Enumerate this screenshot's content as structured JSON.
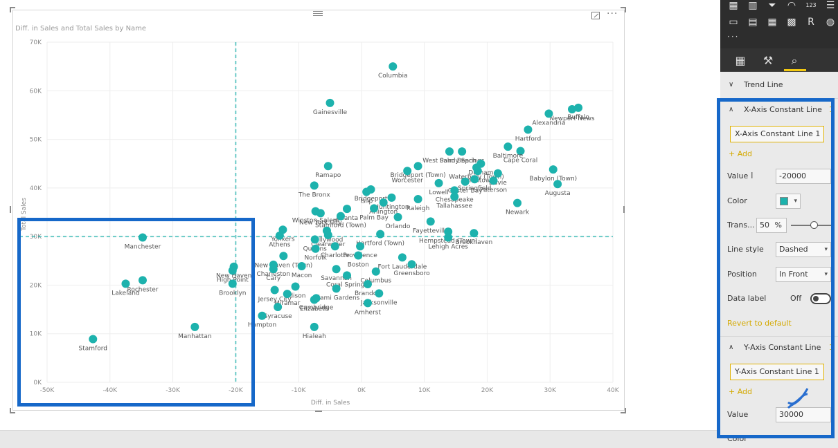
{
  "visual": {
    "title": "Diff. in Sales and Total Sales by Name",
    "more_glyph": "···"
  },
  "chart_data": {
    "type": "scatter",
    "title": "Diff. in Sales and Total Sales by Name",
    "xlabel": "Diff. in Sales",
    "ylabel": "Total Sales",
    "xlim": [
      -50000,
      40000
    ],
    "ylim": [
      0,
      70000
    ],
    "x_ticks": [
      "-50K",
      "-40K",
      "-30K",
      "-20K",
      "-10K",
      "0K",
      "10K",
      "20K",
      "30K",
      "40K"
    ],
    "y_ticks": [
      "0K",
      "10K",
      "20K",
      "30K",
      "40K",
      "50K",
      "60K",
      "70K"
    ],
    "x_constant_line": -20000,
    "y_constant_line": 30000,
    "point_color": "#1db2ad",
    "points": [
      {
        "name": "Columbia",
        "x": 5000,
        "y": 65000
      },
      {
        "name": "Gainesville",
        "x": -5000,
        "y": 57500
      },
      {
        "name": "Buffalo",
        "x": 34500,
        "y": 56500
      },
      {
        "name": "Newport News",
        "x": 33500,
        "y": 56200
      },
      {
        "name": "Alexandria",
        "x": 29800,
        "y": 55300
      },
      {
        "name": "Hartford",
        "x": 26500,
        "y": 52000
      },
      {
        "name": "Sandy Springs",
        "x": 16000,
        "y": 47500
      },
      {
        "name": "Cape Coral",
        "x": 25300,
        "y": 47600
      },
      {
        "name": "West Palm Beach",
        "x": 14000,
        "y": 47500
      },
      {
        "name": "Baltimore",
        "x": 23300,
        "y": 48500
      },
      {
        "name": "Durham",
        "x": 19000,
        "y": 45000
      },
      {
        "name": "Bridgeport (Town)",
        "x": 9000,
        "y": 44500
      },
      {
        "name": "Waterbury (Town)",
        "x": 18300,
        "y": 44200
      },
      {
        "name": "Ramapo",
        "x": -5300,
        "y": 44500
      },
      {
        "name": "Worcester",
        "x": 7300,
        "y": 43500
      },
      {
        "name": "Smithtown",
        "x": 18500,
        "y": 43500
      },
      {
        "name": "Davie",
        "x": 21700,
        "y": 43000
      },
      {
        "name": "Paterson",
        "x": 21000,
        "y": 41500
      },
      {
        "name": "Babylon (Town)",
        "x": 30500,
        "y": 43800
      },
      {
        "name": "Lowell",
        "x": 12300,
        "y": 41000
      },
      {
        "name": "Oyster Bay",
        "x": 16500,
        "y": 41300
      },
      {
        "name": "Springfield",
        "x": 18000,
        "y": 41800
      },
      {
        "name": "Augusta",
        "x": 31200,
        "y": 40800
      },
      {
        "name": "The Bronx",
        "x": -7500,
        "y": 40500
      },
      {
        "name": "Bridgeport",
        "x": 1500,
        "y": 39700
      },
      {
        "name": "Islip",
        "x": 800,
        "y": 39200
      },
      {
        "name": "Chesapeake",
        "x": 14800,
        "y": 39500
      },
      {
        "name": "Huntington",
        "x": 4800,
        "y": 38000
      },
      {
        "name": "Tallahassee",
        "x": 14800,
        "y": 38200
      },
      {
        "name": "Raleigh",
        "x": 9000,
        "y": 37700
      },
      {
        "name": "Winston-Salem",
        "x": -7300,
        "y": 35200
      },
      {
        "name": "Atlanta",
        "x": -2300,
        "y": 35700
      },
      {
        "name": "Arlington",
        "x": 3500,
        "y": 37000
      },
      {
        "name": "Palm Bay",
        "x": 2000,
        "y": 35800
      },
      {
        "name": "Newark",
        "x": 24800,
        "y": 36900
      },
      {
        "name": "New York City",
        "x": -6500,
        "y": 34800
      },
      {
        "name": "Stamford (Town)",
        "x": -3300,
        "y": 34200
      },
      {
        "name": "Orlando",
        "x": 5800,
        "y": 34000
      },
      {
        "name": "Yonkers",
        "x": -12500,
        "y": 31400
      },
      {
        "name": "Fayetteville",
        "x": 11000,
        "y": 33100
      },
      {
        "name": "Hollywood",
        "x": -5500,
        "y": 31200
      },
      {
        "name": "Hempstead (Town)",
        "x": 13800,
        "y": 31000
      },
      {
        "name": "Brookhaven",
        "x": 17900,
        "y": 30700
      },
      {
        "name": "Athens",
        "x": -13000,
        "y": 30200
      },
      {
        "name": "Clearwater",
        "x": -5300,
        "y": 30300
      },
      {
        "name": "Hartford (Town)",
        "x": 3000,
        "y": 30500
      },
      {
        "name": "Lehigh Acres",
        "x": 13800,
        "y": 29800
      },
      {
        "name": "Queens",
        "x": -7400,
        "y": 29400
      },
      {
        "name": "Charlotte",
        "x": -4200,
        "y": 28000
      },
      {
        "name": "Providence",
        "x": -200,
        "y": 28000
      },
      {
        "name": "New Haven (Town)",
        "x": -12400,
        "y": 26000
      },
      {
        "name": "Norfolk",
        "x": -7300,
        "y": 27500
      },
      {
        "name": "Fort Lauderdale",
        "x": 6500,
        "y": 25700
      },
      {
        "name": "Charleston",
        "x": -14000,
        "y": 24200
      },
      {
        "name": "Boston",
        "x": -500,
        "y": 26100
      },
      {
        "name": "Macon",
        "x": -9500,
        "y": 23900
      },
      {
        "name": "Greensboro",
        "x": 8000,
        "y": 24300
      },
      {
        "name": "Cary",
        "x": -14000,
        "y": 23300
      },
      {
        "name": "Savannah",
        "x": -4000,
        "y": 23300
      },
      {
        "name": "Columbus",
        "x": 2300,
        "y": 22800
      },
      {
        "name": "Coral Springs",
        "x": -2300,
        "y": 22000
      },
      {
        "name": "Brandon",
        "x": 1000,
        "y": 20200
      },
      {
        "name": "Jersey City",
        "x": -13800,
        "y": 19000
      },
      {
        "name": "Edison",
        "x": -10500,
        "y": 19700
      },
      {
        "name": "Miami Gardens",
        "x": -4000,
        "y": 19300
      },
      {
        "name": "Jacksonville",
        "x": 2800,
        "y": 18300
      },
      {
        "name": "Miramar",
        "x": -11800,
        "y": 18200
      },
      {
        "name": "Cambridge",
        "x": -7200,
        "y": 17300
      },
      {
        "name": "Elizabeth",
        "x": -7500,
        "y": 17000
      },
      {
        "name": "Amherst",
        "x": 1000,
        "y": 16300
      },
      {
        "name": "Syracuse",
        "x": -13300,
        "y": 15500
      },
      {
        "name": "Hampton",
        "x": -15800,
        "y": 13700
      },
      {
        "name": "Hialeah",
        "x": -7500,
        "y": 11400
      },
      {
        "name": "Manchester",
        "x": -34800,
        "y": 29800
      },
      {
        "name": "Rochester",
        "x": -34800,
        "y": 21000
      },
      {
        "name": "Lakeland",
        "x": -37500,
        "y": 20300
      },
      {
        "name": "New Haven",
        "x": -20300,
        "y": 23800
      },
      {
        "name": "High Point",
        "x": -20500,
        "y": 23000
      },
      {
        "name": "Brooklyn",
        "x": -20500,
        "y": 20300
      },
      {
        "name": "Manhattan",
        "x": -26500,
        "y": 11400
      },
      {
        "name": "Stamford",
        "x": -42700,
        "y": 8900
      }
    ]
  },
  "panel": {
    "trend_line_label": "Trend Line",
    "x_axis": {
      "section_label": "X-Axis Constant Line",
      "count": "1",
      "line_name": "X-Axis Constant Line 1",
      "add_label": "Add",
      "value_label": "Value",
      "value": "-20000",
      "color_label": "Color",
      "color_hex": "#1db2ad",
      "transparency_label": "Trans...",
      "transparency_value": "50",
      "transparency_unit": "%",
      "line_style_label": "Line style",
      "line_style_value": "Dashed",
      "position_label": "Position",
      "position_value": "In Front",
      "data_label_label": "Data label",
      "data_label_state": "Off",
      "revert_label": "Revert to default"
    },
    "y_axis": {
      "section_label": "Y-Axis Constant Line",
      "count": "1",
      "line_name": "Y-Axis Constant Line 1",
      "add_label": "Add",
      "value_label": "Value",
      "value": "30000",
      "color_label": "Color"
    },
    "viz_icons": [
      "map-icon",
      "filled-map-icon",
      "funnel-icon",
      "gauge-icon",
      "card-icon",
      "multirow-card-icon",
      "kpi-icon",
      "slicer-icon",
      "table-icon",
      "matrix-icon",
      "r-script-icon",
      "globe-icon"
    ],
    "viz_glyphs": [
      "▦",
      "▥",
      "⏷",
      "◠",
      "123",
      "☰",
      "▭",
      "▤",
      "▦",
      "▩",
      "R",
      "◍"
    ]
  }
}
